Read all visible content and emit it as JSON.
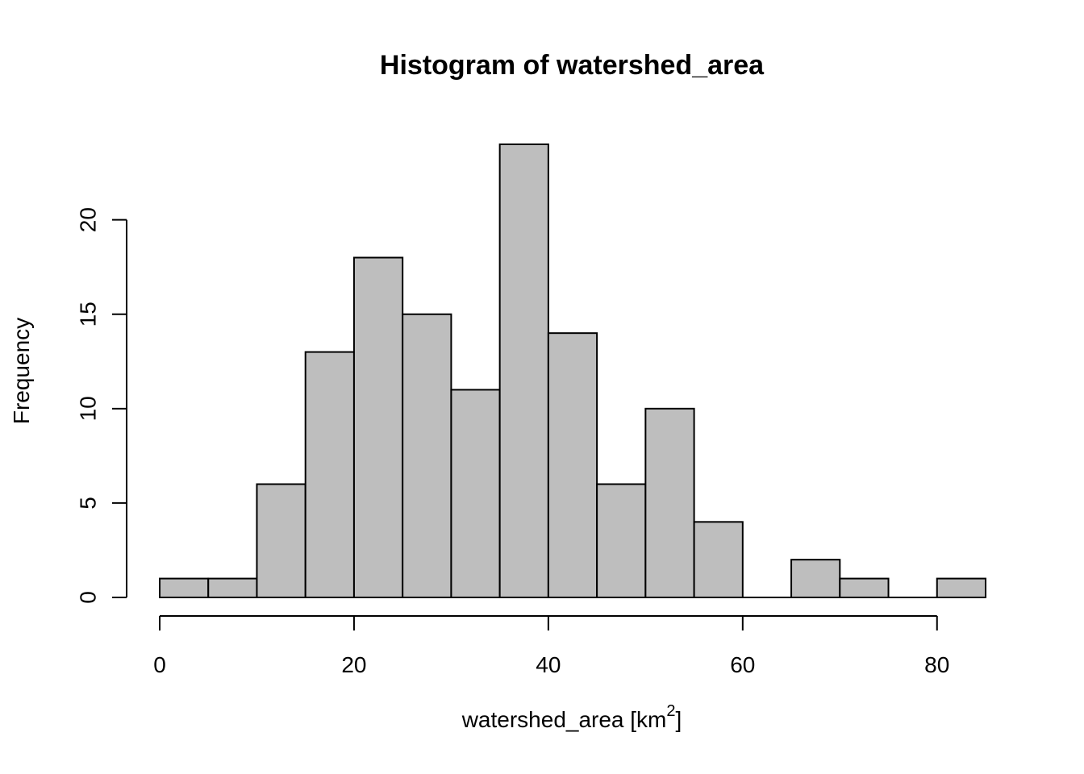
{
  "chart_data": {
    "type": "bar",
    "title": "Histogram of watershed_area",
    "xlabel": "watershed_area [km",
    "xlabel_superscript": "2",
    "xlabel_suffix": "]",
    "ylabel": "Frequency",
    "bin_edges": [
      0,
      5,
      10,
      15,
      20,
      25,
      30,
      35,
      40,
      45,
      50,
      55,
      60,
      65,
      70,
      75,
      80,
      85
    ],
    "values": [
      1,
      1,
      6,
      13,
      18,
      15,
      11,
      24,
      14,
      6,
      10,
      4,
      0,
      2,
      1,
      0,
      1
    ],
    "x_ticks": [
      0,
      20,
      40,
      60,
      80
    ],
    "y_ticks": [
      0,
      5,
      10,
      15,
      20
    ],
    "xlim": [
      0,
      85
    ],
    "ylim": [
      0,
      24
    ],
    "grid": false,
    "bar_fill": "#bebebe",
    "bar_stroke": "#000000"
  }
}
